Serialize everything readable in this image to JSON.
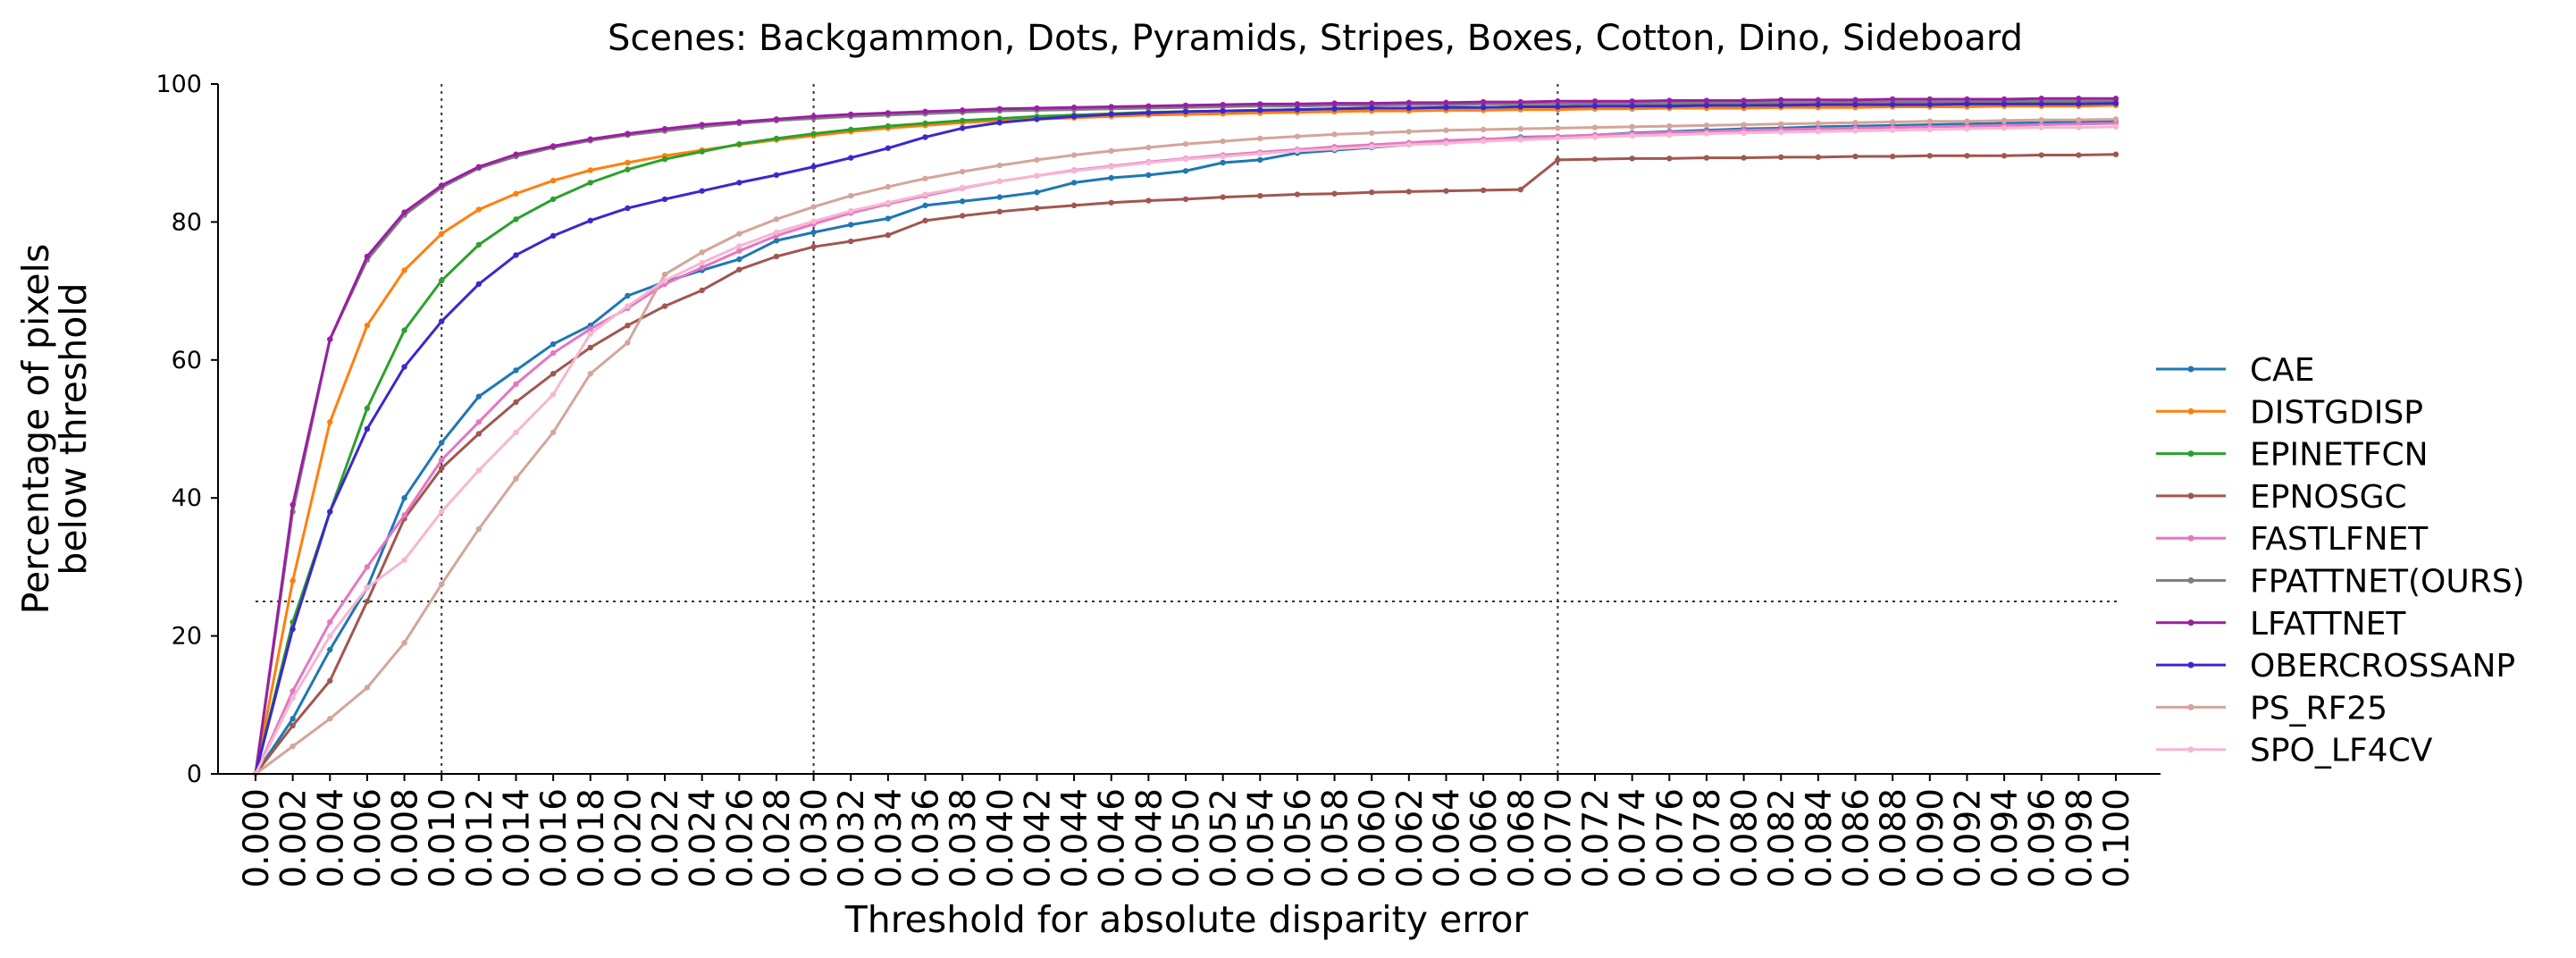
{
  "chart_data": {
    "type": "line",
    "title": "Scenes: Backgammon, Dots, Pyramids, Stripes, Boxes, Cotton, Dino, Sideboard",
    "xlabel": "Threshold for absolute disparity error",
    "ylabel_lines": [
      "Percentage of pixels",
      "below threshold"
    ],
    "xlim": [
      0.0,
      0.1
    ],
    "ylim": [
      0,
      100
    ],
    "x_tick_labels": [
      "0.000",
      "0.002",
      "0.004",
      "0.006",
      "0.008",
      "0.010",
      "0.012",
      "0.014",
      "0.016",
      "0.018",
      "0.020",
      "0.022",
      "0.024",
      "0.026",
      "0.028",
      "0.030",
      "0.032",
      "0.034",
      "0.036",
      "0.038",
      "0.040",
      "0.042",
      "0.044",
      "0.046",
      "0.048",
      "0.050",
      "0.052",
      "0.054",
      "0.056",
      "0.058",
      "0.060",
      "0.062",
      "0.064",
      "0.066",
      "0.068",
      "0.070",
      "0.072",
      "0.074",
      "0.076",
      "0.078",
      "0.080",
      "0.082",
      "0.084",
      "0.086",
      "0.088",
      "0.090",
      "0.092",
      "0.094",
      "0.096",
      "0.098",
      "0.100"
    ],
    "y_tick_labels": [
      "0",
      "20",
      "40",
      "60",
      "80",
      "100"
    ],
    "grid": false,
    "reference_lines": {
      "vertical_x": [
        0.01,
        0.03,
        0.07
      ],
      "horizontal_y": [
        25
      ],
      "style": "dotted"
    },
    "legend_position": "right",
    "series": [
      {
        "name": "CAE",
        "color": "#1f77b4",
        "values": [
          0,
          8,
          18,
          27,
          40,
          48,
          54.7,
          58.5,
          62.3,
          65,
          69.3,
          71.3,
          73,
          74.6,
          77.3,
          78.5,
          79.6,
          80.5,
          82.4,
          83,
          83.6,
          84.3,
          85.7,
          86.4,
          86.8,
          87.4,
          88.6,
          89,
          90,
          90.4,
          90.8,
          91.2,
          91.7,
          91.9,
          92.3,
          92.4,
          92.6,
          92.9,
          93.1,
          93.3,
          93.5,
          93.6,
          93.8,
          93.9,
          94,
          94.1,
          94.2,
          94.3,
          94.4,
          94.5,
          94.6
        ]
      },
      {
        "name": "DISTGDISP",
        "color": "#ff7f0e",
        "values": [
          0,
          28,
          51,
          65,
          73,
          78.3,
          81.8,
          84.1,
          86,
          87.5,
          88.6,
          89.6,
          90.4,
          91.2,
          91.9,
          92.5,
          93.1,
          93.6,
          94,
          94.4,
          94.7,
          94.9,
          95.1,
          95.3,
          95.5,
          95.6,
          95.7,
          95.8,
          95.9,
          96,
          96.1,
          96.1,
          96.2,
          96.2,
          96.3,
          96.3,
          96.4,
          96.4,
          96.5,
          96.5,
          96.5,
          96.6,
          96.6,
          96.6,
          96.7,
          96.7,
          96.7,
          96.8,
          96.8,
          96.8,
          96.9
        ]
      },
      {
        "name": "EPINETFCN",
        "color": "#2ca02c",
        "values": [
          0,
          22,
          38,
          53,
          64.3,
          71.5,
          76.7,
          80.4,
          83.3,
          85.7,
          87.6,
          89.1,
          90.2,
          91.3,
          92.1,
          92.8,
          93.4,
          93.9,
          94.3,
          94.7,
          95,
          95.3,
          95.5,
          95.7,
          95.9,
          96,
          96.1,
          96.2,
          96.3,
          96.4,
          96.5,
          96.5,
          96.6,
          96.6,
          96.7,
          96.7,
          96.8,
          96.8,
          96.9,
          96.9,
          96.9,
          97,
          97,
          97,
          97.1,
          97.1,
          97.1,
          97.2,
          97.2,
          97.2,
          97.2
        ]
      },
      {
        "name": "EPNOSGC",
        "color": "#a0574f",
        "values": [
          0,
          7,
          13.5,
          25,
          37,
          44.3,
          49.3,
          53.9,
          58,
          61.8,
          65,
          67.8,
          70.1,
          73.1,
          75,
          76.4,
          77.2,
          78.1,
          80.2,
          80.9,
          81.5,
          82,
          82.4,
          82.8,
          83.1,
          83.3,
          83.6,
          83.8,
          84,
          84.1,
          84.3,
          84.4,
          84.5,
          84.6,
          84.7,
          89,
          89.1,
          89.2,
          89.2,
          89.3,
          89.3,
          89.4,
          89.4,
          89.5,
          89.5,
          89.6,
          89.6,
          89.6,
          89.7,
          89.7,
          89.8
        ]
      },
      {
        "name": "FASTLFNET",
        "color": "#e377c2",
        "values": [
          0,
          12,
          22,
          30,
          37.5,
          45.5,
          51,
          56.5,
          61,
          64.5,
          67.5,
          71,
          73.4,
          75.8,
          78,
          79.7,
          81.3,
          82.6,
          83.8,
          84.9,
          85.9,
          86.7,
          87.5,
          88.1,
          88.7,
          89.2,
          89.7,
          90.1,
          90.5,
          90.9,
          91.2,
          91.5,
          91.8,
          92,
          92.2,
          92.4,
          92.6,
          92.8,
          93,
          93.1,
          93.3,
          93.4,
          93.5,
          93.6,
          93.7,
          93.8,
          93.9,
          94,
          94.1,
          94.2,
          94.3
        ]
      },
      {
        "name": "FPATTNET(OURS)",
        "color": "#7f7f7f",
        "values": [
          0,
          38,
          63,
          74.5,
          81,
          85,
          87.8,
          89.5,
          90.8,
          91.8,
          92.6,
          93.2,
          93.8,
          94.3,
          94.7,
          95,
          95.3,
          95.5,
          95.7,
          95.9,
          96.1,
          96.2,
          96.3,
          96.4,
          96.5,
          96.6,
          96.7,
          96.8,
          96.8,
          96.9,
          96.9,
          97,
          97,
          97.1,
          97.1,
          97.1,
          97.2,
          97.2,
          97.2,
          97.3,
          97.3,
          97.3,
          97.3,
          97.4,
          97.4,
          97.4,
          97.4,
          97.5,
          97.5,
          97.5,
          97.5
        ]
      },
      {
        "name": "LFATTNET",
        "color": "#9a1fa3",
        "values": [
          0,
          39,
          63,
          75,
          81.4,
          85.3,
          88,
          89.8,
          91,
          92,
          92.8,
          93.5,
          94.1,
          94.5,
          94.9,
          95.3,
          95.6,
          95.8,
          96,
          96.2,
          96.4,
          96.5,
          96.6,
          96.7,
          96.8,
          96.9,
          97,
          97.1,
          97.1,
          97.2,
          97.2,
          97.3,
          97.3,
          97.4,
          97.4,
          97.5,
          97.5,
          97.5,
          97.6,
          97.6,
          97.6,
          97.7,
          97.7,
          97.7,
          97.8,
          97.8,
          97.8,
          97.8,
          97.9,
          97.9,
          97.9
        ]
      },
      {
        "name": "OBERCROSSANP",
        "color": "#3b28cc",
        "values": [
          0,
          21,
          38,
          50,
          59,
          65.6,
          71,
          75.2,
          78,
          80.2,
          82,
          83.3,
          84.5,
          85.7,
          86.8,
          88,
          89.3,
          90.7,
          92.3,
          93.6,
          94.4,
          94.9,
          95.3,
          95.6,
          95.8,
          96,
          96.1,
          96.2,
          96.3,
          96.4,
          96.5,
          96.5,
          96.6,
          96.6,
          96.7,
          96.7,
          96.8,
          96.8,
          96.8,
          96.9,
          96.9,
          96.9,
          97,
          97,
          97,
          97,
          97.1,
          97.1,
          97.1,
          97.1,
          97.2
        ]
      },
      {
        "name": "PS_RF25",
        "color": "#d4a59a",
        "values": [
          0,
          4,
          8,
          12.5,
          19,
          27.5,
          35.5,
          42.8,
          49.5,
          58,
          62.5,
          72.4,
          75.6,
          78.3,
          80.4,
          82.2,
          83.8,
          85.1,
          86.3,
          87.3,
          88.2,
          89,
          89.7,
          90.3,
          90.8,
          91.3,
          91.7,
          92.1,
          92.4,
          92.7,
          92.9,
          93.1,
          93.3,
          93.4,
          93.5,
          93.6,
          93.7,
          93.8,
          93.9,
          94,
          94.1,
          94.2,
          94.3,
          94.4,
          94.5,
          94.6,
          94.6,
          94.7,
          94.8,
          94.8,
          94.9
        ]
      },
      {
        "name": "SPO_LF4CV",
        "color": "#f7b6d2",
        "values": [
          0,
          11,
          20,
          27,
          31,
          38,
          44,
          49.5,
          55,
          63.8,
          67.8,
          71.5,
          74.1,
          76.5,
          78.5,
          80.1,
          81.6,
          82.8,
          84,
          85,
          85.9,
          86.7,
          87.4,
          88,
          88.6,
          89.1,
          89.5,
          89.9,
          90.3,
          90.6,
          90.9,
          91.2,
          91.4,
          91.7,
          91.9,
          92.1,
          92.3,
          92.5,
          92.6,
          92.8,
          92.9,
          93,
          93.1,
          93.2,
          93.3,
          93.4,
          93.5,
          93.6,
          93.7,
          93.7,
          93.8
        ]
      }
    ]
  }
}
